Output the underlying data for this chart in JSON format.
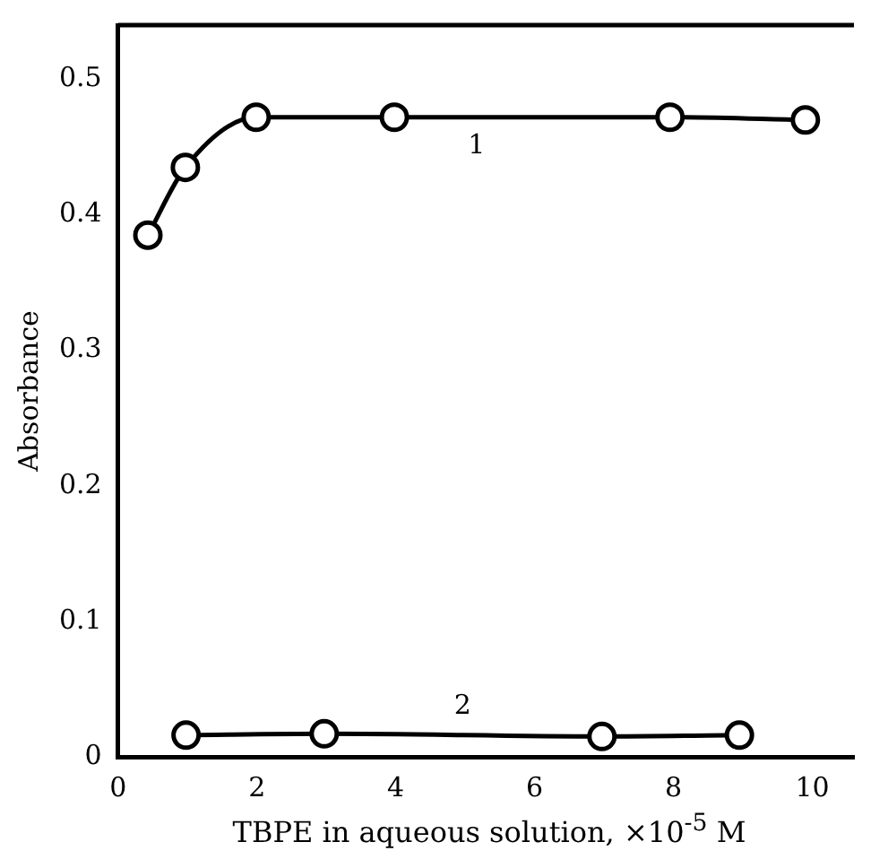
{
  "chart_data": {
    "type": "line",
    "xlabel": "TBPE in aqueous solution, ×10$^{-5}$ M",
    "ylabel": "Absorbance",
    "xlim": [
      0,
      10.6
    ],
    "xticks": [
      0,
      2,
      4,
      6,
      8,
      10
    ],
    "ylim": [
      0,
      0.54
    ],
    "yticks": [
      0,
      0.1,
      0.2,
      0.3,
      0.4,
      0.5
    ],
    "series": [
      {
        "name": "1",
        "color": "#000000",
        "x": [
          0.43,
          0.97,
          1.99,
          3.98,
          7.95,
          9.9
        ],
        "values": [
          0.385,
          0.435,
          0.472,
          0.472,
          0.472,
          0.47
        ]
      },
      {
        "name": "2",
        "color": "#000000",
        "x": [
          0.98,
          2.97,
          6.97,
          8.95
        ],
        "values": [
          0.016,
          0.017,
          0.015,
          0.016
        ]
      }
    ],
    "marker": "circle",
    "line_style": "solid",
    "grid": false,
    "legend": false
  }
}
